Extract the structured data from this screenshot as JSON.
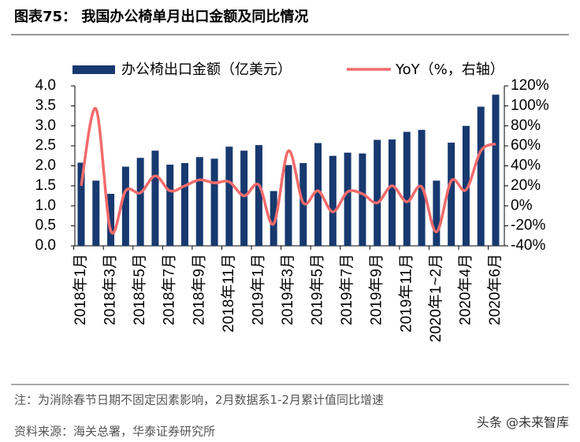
{
  "chart_data": {
    "type": "bar",
    "title": "图表75：   我国办公椅单月出口金额及同比情况",
    "categories": [
      "2018年1月",
      null,
      "2018年3月",
      null,
      "2018年5月",
      null,
      "2018年7月",
      null,
      "2018年9月",
      null,
      "2018年11月",
      null,
      "2019年1月",
      null,
      "2019年3月",
      null,
      "2019年5月",
      null,
      "2019年7月",
      null,
      "2019年9月",
      null,
      "2019年11月",
      null,
      "2020年1~2月",
      null,
      "2020年4月",
      null,
      "2020年6月"
    ],
    "series": [
      {
        "name": "办公椅出口金额（亿美元）",
        "type": "bar",
        "color": "#17396f",
        "values": [
          2.08,
          1.63,
          1.3,
          1.98,
          2.2,
          2.38,
          2.03,
          2.07,
          2.22,
          2.18,
          2.48,
          2.38,
          2.52,
          1.37,
          2.02,
          2.07,
          2.57,
          2.25,
          2.33,
          2.31,
          2.65,
          2.66,
          2.85,
          2.9,
          1.63,
          2.58,
          3.0,
          3.48,
          3.78
        ]
      },
      {
        "name": "YoY（%，右轴）",
        "type": "line",
        "axis": "y2",
        "color": "#f26b6b",
        "values": [
          20,
          97,
          -25,
          15,
          13,
          30,
          15,
          20,
          26,
          23,
          24,
          10,
          21,
          -18,
          55,
          3,
          15,
          -6,
          14,
          12,
          3,
          20,
          4,
          19,
          -26,
          25,
          16,
          55,
          62
        ]
      }
    ],
    "ylim": [
      0,
      4
    ],
    "yticks": [
      {
        "value": 0,
        "label": "0.0"
      },
      0.5,
      {
        "value": 1,
        "label": "1.0"
      },
      1.5,
      {
        "value": 2,
        "label": "2.0"
      },
      2.5,
      {
        "value": 3,
        "label": "3.0"
      },
      3.5,
      {
        "value": 4,
        "label": "4.0"
      }
    ],
    "y2lim": [
      -40,
      120
    ],
    "y2ticks": [
      {
        "value": -40,
        "label": "-40%"
      },
      {
        "value": -20,
        "label": "-20%"
      },
      {
        "value": 0,
        "label": "0%"
      },
      {
        "value": 20,
        "label": "20%"
      },
      {
        "value": 40,
        "label": "40%"
      },
      {
        "value": 60,
        "label": "60%"
      },
      {
        "value": 80,
        "label": "80%"
      },
      {
        "value": 100,
        "label": "100%"
      },
      {
        "value": 120,
        "label": "120%"
      }
    ],
    "note": "注：为消除春节日期不固定因素影响，2月数据系1-2月累计值同比增速",
    "source": "资料来源：海关总署，华泰证券研究所",
    "watermark": "头条 @未来智库"
  }
}
